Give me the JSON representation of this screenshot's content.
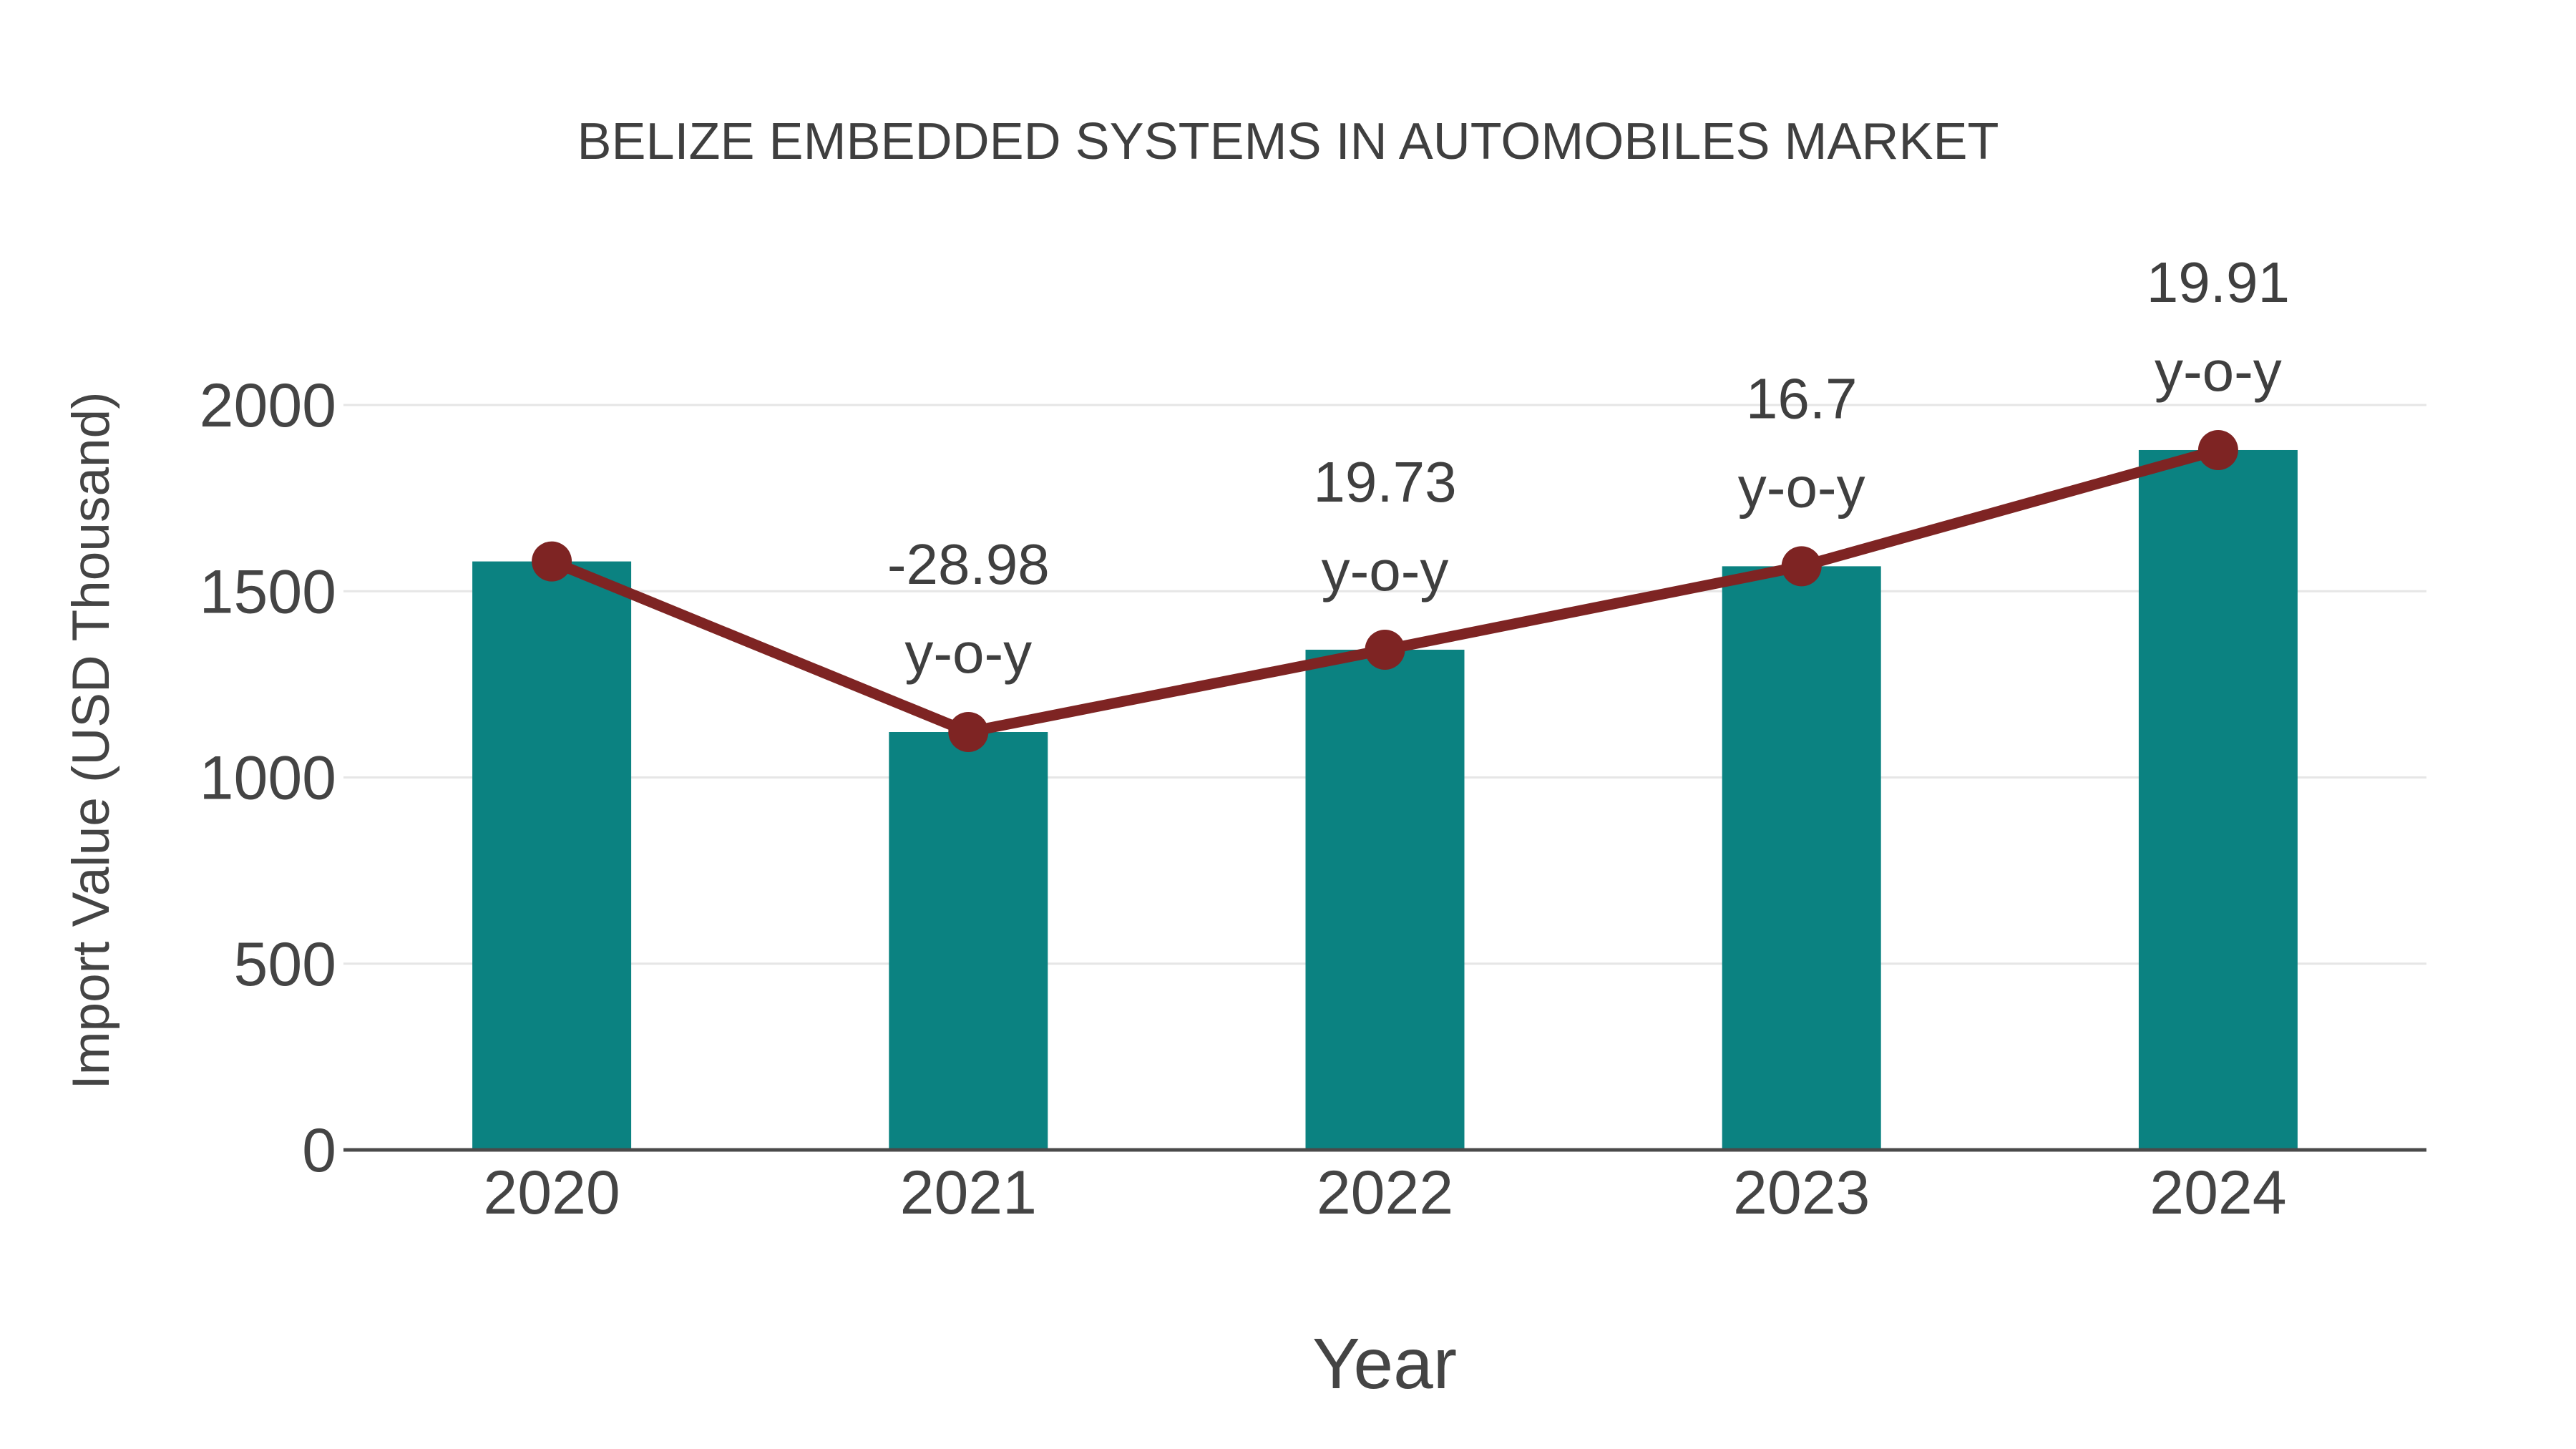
{
  "title": "BELIZE EMBEDDED SYSTEMS IN AUTOMOBILES MARKET",
  "chart_data": {
    "type": "bar",
    "title": "BELIZE EMBEDDED SYSTEMS IN AUTOMOBILES MARKET",
    "xlabel": "Year",
    "ylabel": "Import Value (USD Thousand)",
    "categories": [
      "2020",
      "2021",
      "2022",
      "2023",
      "2024"
    ],
    "series": [
      {
        "name": "import-value-bars",
        "type": "bar",
        "values": [
          1580,
          1122,
          1343,
          1567,
          1879
        ]
      },
      {
        "name": "import-value-line",
        "type": "line",
        "values": [
          1580,
          1122,
          1343,
          1567,
          1879
        ]
      }
    ],
    "annotations": [
      {
        "category": "2021",
        "line1": "-28.98",
        "line2": "y-o-y"
      },
      {
        "category": "2022",
        "line1": "19.73",
        "line2": "y-o-y"
      },
      {
        "category": "2023",
        "line1": "16.7",
        "line2": "y-o-y"
      },
      {
        "category": "2024",
        "line1": "19.91",
        "line2": "y-o-y"
      }
    ],
    "yticks": [
      0,
      500,
      1000,
      1500,
      2000
    ],
    "ylim": [
      0,
      2145
    ],
    "grid": true,
    "legend_position": "none",
    "colors": {
      "bar": "#0b8281",
      "line": "#7e2423",
      "marker": "#7e2423",
      "grid": "#e6e6e6",
      "axis_line": "#4a4a4a",
      "text": "#3f3f3f",
      "tick_text": "#444444"
    }
  }
}
